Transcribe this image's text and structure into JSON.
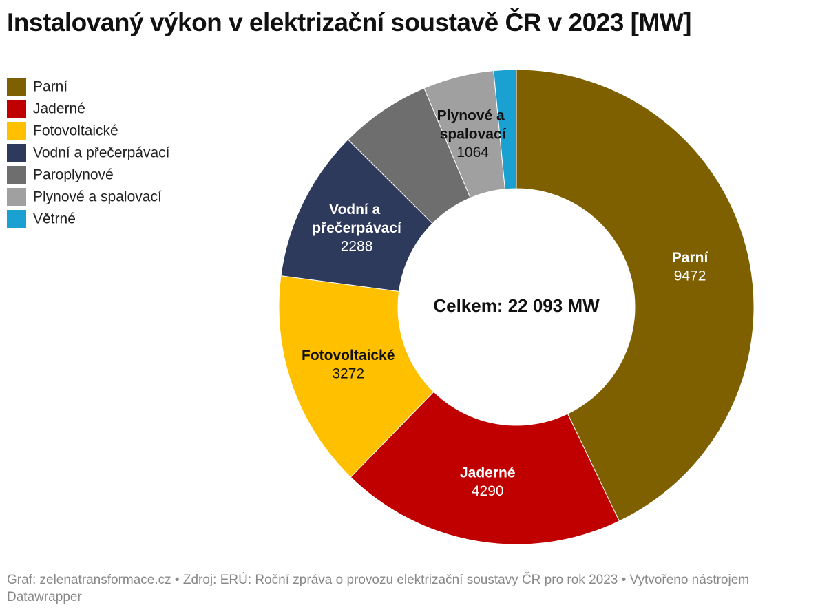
{
  "chart_data": {
    "type": "donut",
    "title": "Instalovaný výkon v elektrizační soustavě ČR v 2023 [MW]",
    "center_label": "Celkem: 22 093 MW",
    "source": "Graf: zelenatransformace.cz • Zdroj: ERÚ: Roční zpráva o provozu elektrizační soustavy ČR pro rok 2023 • Vytvořeno nástrojem Datawrapper",
    "categories": [
      "Parní",
      "Jaderné",
      "Fotovoltaické",
      "Vodní a přečerpávací",
      "Paroplynové",
      "Plynové a spalovací",
      "Větrné"
    ],
    "values": [
      9472,
      4290,
      3272,
      2288,
      1368,
      1064,
      339
    ],
    "colors": [
      "#7f6000",
      "#c00000",
      "#ffc000",
      "#2e3a5c",
      "#6e6e6e",
      "#a0a0a0",
      "#1ba1d1"
    ],
    "data_labels": [
      true,
      true,
      true,
      true,
      false,
      true,
      false
    ],
    "legend": "top-left"
  }
}
